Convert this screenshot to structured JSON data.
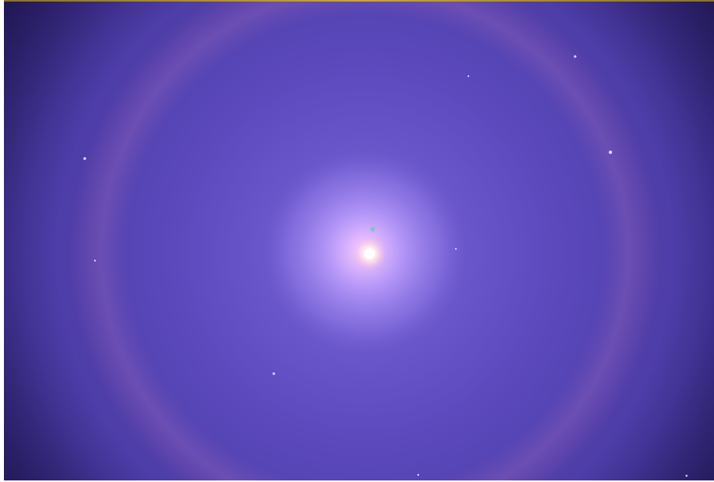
{
  "image": {
    "subject": "lens-halo-light-source",
    "colors": {
      "core": "#fff0f4",
      "inner_glow": "#c8a8ff",
      "mid_field": "#6a55c8",
      "halo_ring": "#8a5fb8",
      "outer_vignette": "#2a1f6a",
      "top_edge": "#c9a24a"
    }
  }
}
